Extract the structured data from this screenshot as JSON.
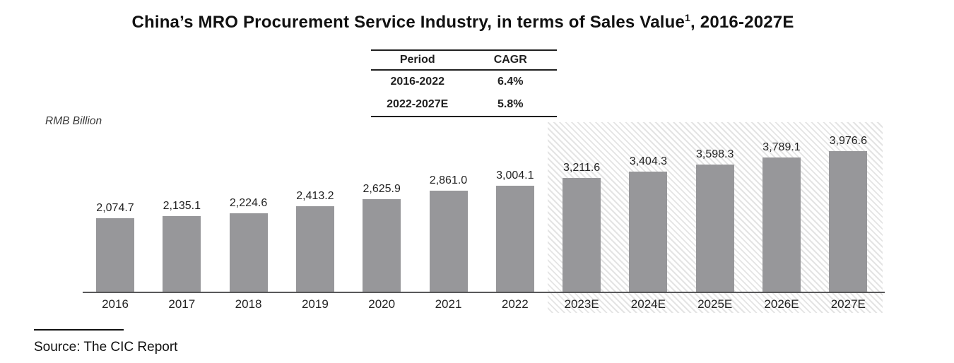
{
  "title": {
    "main": "China’s MRO Procurement Service Industry, in terms of Sales Value",
    "superscript": "1",
    "suffix": ", 2016-2027E"
  },
  "cagr_table": {
    "headers": [
      "Period",
      "CAGR"
    ],
    "rows": [
      [
        "2016-2022",
        "6.4%"
      ],
      [
        "2022-2027E",
        "5.8%"
      ]
    ]
  },
  "unit_label": "RMB Billion",
  "source": "Source: The CIC Report",
  "chart_data": {
    "type": "bar",
    "title": "China’s MRO Procurement Service Industry, in terms of Sales Value, 2016-2027E",
    "ylabel": "RMB Billion",
    "xlabel": "",
    "categories": [
      "2016",
      "2017",
      "2018",
      "2019",
      "2020",
      "2021",
      "2022",
      "2023E",
      "2024E",
      "2025E",
      "2026E",
      "2027E"
    ],
    "values": [
      2074.7,
      2135.1,
      2224.6,
      2413.2,
      2625.9,
      2861.0,
      3004.1,
      3211.6,
      3404.3,
      3598.3,
      3789.1,
      3976.6
    ],
    "labels": [
      "2,074.7",
      "2,135.1",
      "2,224.6",
      "2,413.2",
      "2,625.9",
      "2,861.0",
      "3,004.1",
      "3,211.6",
      "3,404.3",
      "3,598.3",
      "3,789.1",
      "3,976.6"
    ],
    "forecast_categories": [
      "2023E",
      "2024E",
      "2025E",
      "2026E",
      "2027E"
    ],
    "annotations": [
      {
        "label": "CAGR 2016-2022",
        "value": "6.4%"
      },
      {
        "label": "CAGR 2022-2027E",
        "value": "5.8%"
      }
    ],
    "ylim": [
      0,
      4000
    ],
    "grid": false,
    "legend": "none",
    "bar_color": "#97979a",
    "axis_color": "#58585a",
    "forecast_hatch_line_color": "#e4e4e4",
    "value_label_color": "#242424"
  }
}
